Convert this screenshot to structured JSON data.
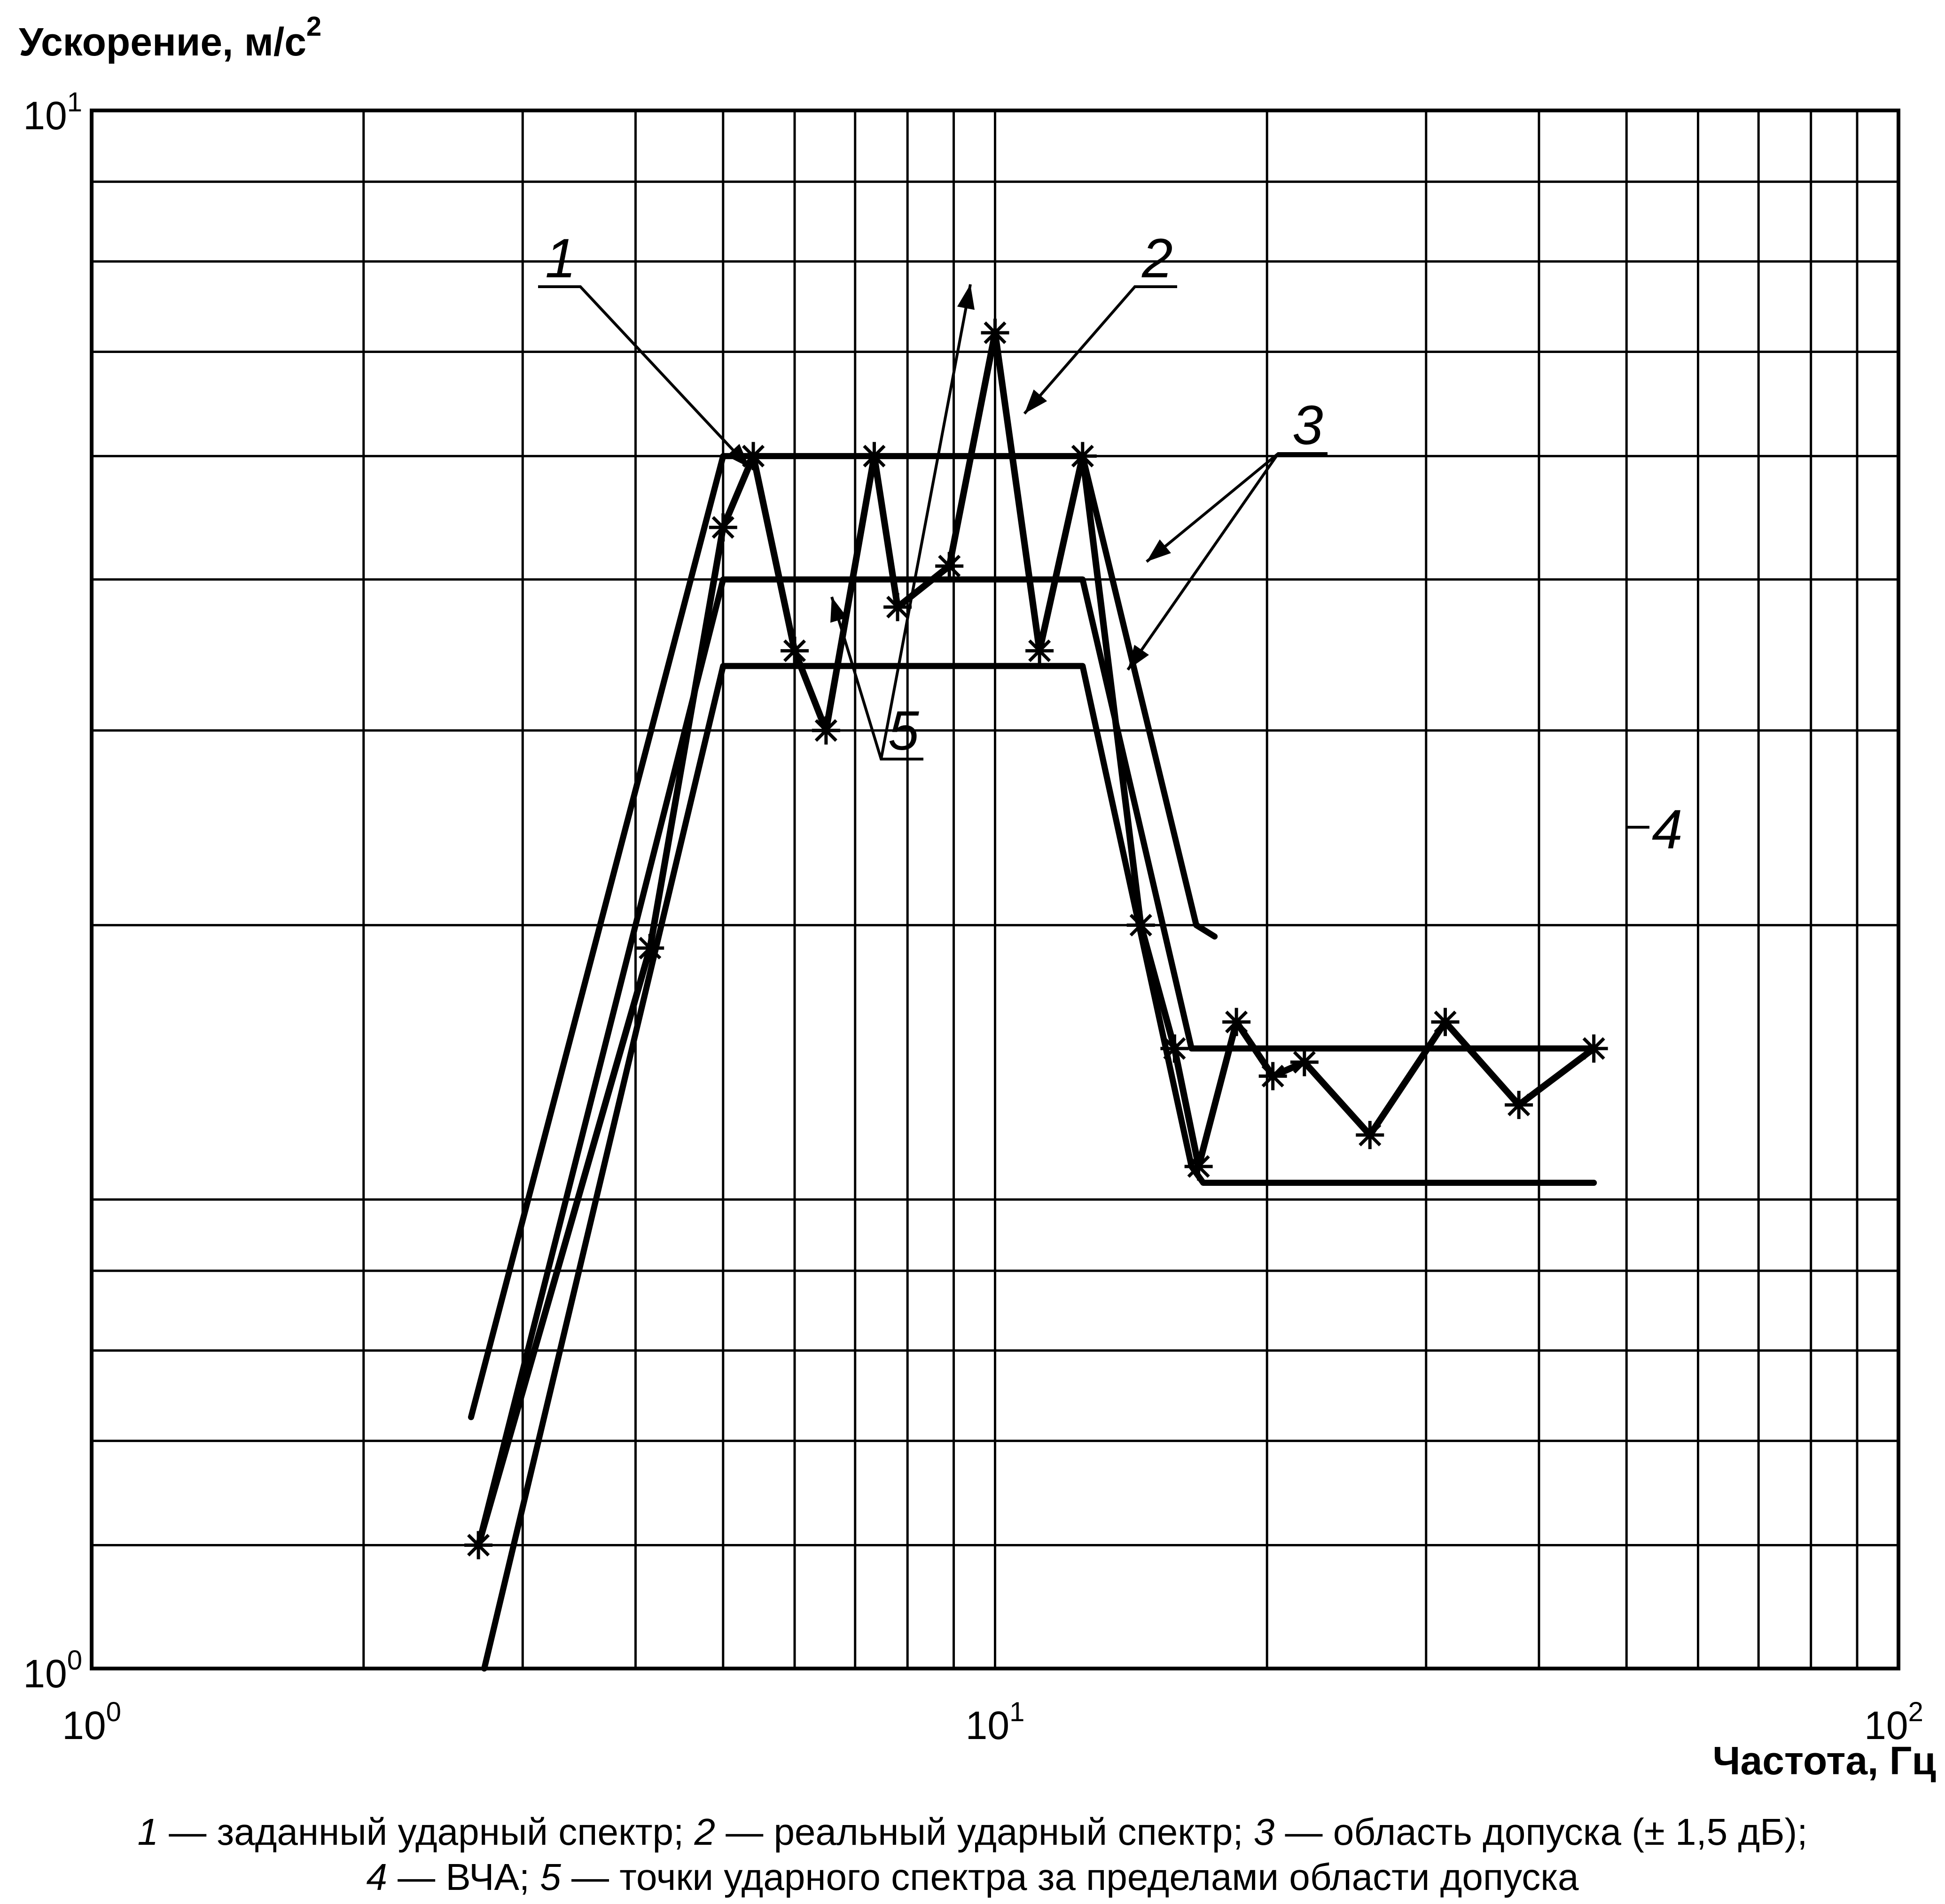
{
  "chart_data": {
    "type": "line",
    "xscale": "log",
    "yscale": "log",
    "xlim": [
      1,
      100
    ],
    "ylim": [
      1,
      10
    ],
    "grid": true,
    "ylabel": "Ускорение, м/с",
    "ylabel_sup": "2",
    "xlabel": "Частота, Гц",
    "x_ticks": [
      {
        "base": "10",
        "exp": "0",
        "value": 1
      },
      {
        "base": "10",
        "exp": "1",
        "value": 10
      },
      {
        "base": "10",
        "exp": "2",
        "value": 100
      }
    ],
    "y_ticks": [
      {
        "base": "10",
        "exp": "0",
        "value": 1
      },
      {
        "base": "10",
        "exp": "1",
        "value": 10
      }
    ],
    "series": [
      {
        "key": "specified",
        "points": [
          [
            2.68,
            1.2
          ],
          [
            5.0,
            5.0
          ],
          [
            12.5,
            5.0
          ],
          [
            16.5,
            2.5
          ],
          [
            46.0,
            2.5
          ]
        ]
      },
      {
        "key": "real",
        "markers": true,
        "points": [
          [
            2.68,
            1.2
          ],
          [
            4.15,
            2.9
          ],
          [
            5.0,
            5.4
          ],
          [
            5.4,
            6.0
          ],
          [
            6.0,
            4.5
          ],
          [
            6.5,
            4.0
          ],
          [
            7.35,
            6.0
          ],
          [
            7.8,
            4.8
          ],
          [
            8.9,
            5.1
          ],
          [
            10.0,
            7.2
          ],
          [
            11.2,
            4.5
          ],
          [
            12.5,
            6.0
          ],
          [
            14.5,
            3.0
          ],
          [
            15.8,
            2.5
          ],
          [
            16.8,
            2.1
          ],
          [
            18.5,
            2.6
          ],
          [
            20.3,
            2.4
          ],
          [
            22.0,
            2.45
          ],
          [
            26.0,
            2.2
          ],
          [
            31.5,
            2.6
          ],
          [
            38.0,
            2.3
          ],
          [
            46.0,
            2.5
          ]
        ]
      },
      {
        "key": "tolerance-upper",
        "points": [
          [
            2.63,
            1.45
          ],
          [
            5.0,
            6.0
          ],
          [
            12.5,
            6.0
          ],
          [
            16.7,
            3.0
          ],
          [
            17.5,
            2.95
          ]
        ]
      },
      {
        "key": "tolerance-lower",
        "points": [
          [
            2.72,
            1.0
          ],
          [
            5.0,
            4.4
          ],
          [
            12.5,
            4.4
          ],
          [
            16.5,
            2.1
          ],
          [
            17.0,
            2.05
          ],
          [
            46.0,
            2.05
          ]
        ]
      }
    ],
    "annotations": [
      {
        "label": "1",
        "target": "specified"
      },
      {
        "label": "2",
        "target": "real"
      },
      {
        "label": "3",
        "target": "tolerance"
      },
      {
        "label": "4",
        "target": "real"
      },
      {
        "label": "5",
        "target": "out-of-tolerance points"
      }
    ]
  },
  "caption": {
    "line1": [
      {
        "n": "1",
        "text": " — заданный ударный спектр; "
      },
      {
        "n": "2",
        "text": " — реальный ударный спектр; "
      },
      {
        "n": "3",
        "text": " — область допуска (± 1,5 дБ);"
      }
    ],
    "line2": [
      {
        "n": "4",
        "text": " — ВЧА; "
      },
      {
        "n": "5",
        "text": " — точки ударного спектра за пределами области допуска"
      }
    ]
  }
}
